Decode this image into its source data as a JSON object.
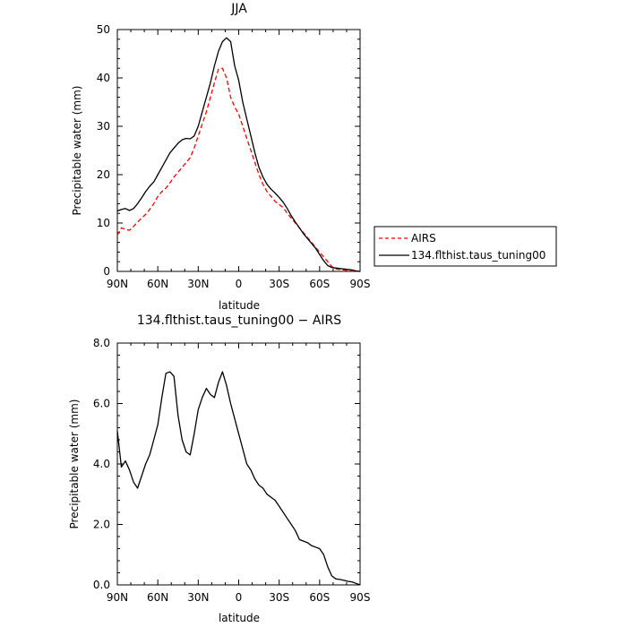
{
  "chart_data": [
    {
      "type": "line",
      "title": "JJA",
      "xlabel": "latitude",
      "ylabel": "Precipitable water (mm)",
      "xlim": [
        90,
        -90
      ],
      "ylim": [
        0,
        50
      ],
      "x_ticks": [
        90,
        60,
        30,
        0,
        -30,
        -60,
        -90
      ],
      "x_tick_labels": [
        "90N",
        "60N",
        "30N",
        "0",
        "30S",
        "60S",
        "90S"
      ],
      "y_ticks": [
        0,
        10,
        20,
        30,
        40,
        50
      ],
      "y_tick_labels": [
        "0",
        "10",
        "20",
        "30",
        "40",
        "50"
      ],
      "legend": {
        "placement": "right"
      },
      "series": [
        {
          "name": "AIRS",
          "color": "#ff0000",
          "dash": "dashed",
          "x": [
            90,
            87,
            84,
            81,
            78,
            75,
            72,
            69,
            66,
            63,
            60,
            57,
            54,
            51,
            48,
            45,
            42,
            39,
            36,
            33,
            30,
            27,
            24,
            21,
            18,
            15,
            12,
            9,
            6,
            3,
            0,
            -3,
            -6,
            -9,
            -12,
            -15,
            -18,
            -21,
            -24,
            -27,
            -30,
            -33,
            -36,
            -39,
            -42,
            -45,
            -48,
            -51,
            -54,
            -57,
            -60,
            -63,
            -66,
            -69,
            -72,
            -75,
            -78,
            -81,
            -84,
            -87,
            -90
          ],
          "y": [
            7.5,
            9.0,
            8.7,
            8.5,
            9.3,
            10.2,
            11.0,
            11.8,
            12.8,
            14.0,
            15.5,
            16.5,
            17.2,
            18.3,
            19.5,
            20.5,
            21.5,
            22.5,
            23.5,
            25.5,
            28.0,
            30.5,
            33.0,
            36.0,
            39.0,
            41.8,
            42.0,
            40.0,
            36.0,
            34.0,
            32.5,
            30.0,
            27.5,
            25.0,
            22.5,
            20.0,
            18.0,
            16.5,
            15.5,
            14.5,
            13.8,
            13.2,
            12.0,
            11.0,
            10.0,
            9.0,
            8.0,
            7.0,
            6.0,
            5.0,
            4.0,
            3.0,
            2.0,
            1.0,
            0.5,
            0.4,
            0.3,
            0.2,
            0.1,
            0.05,
            0.0
          ]
        },
        {
          "name": "134.flthist.taus_tuning00",
          "color": "#000000",
          "dash": "solid",
          "x": [
            90,
            87,
            84,
            81,
            78,
            75,
            72,
            69,
            66,
            63,
            60,
            57,
            54,
            51,
            48,
            45,
            42,
            39,
            36,
            33,
            30,
            27,
            24,
            21,
            18,
            15,
            12,
            9,
            6,
            3,
            0,
            -3,
            -6,
            -9,
            -12,
            -15,
            -18,
            -21,
            -24,
            -27,
            -30,
            -33,
            -36,
            -39,
            -42,
            -45,
            -48,
            -51,
            -54,
            -57,
            -60,
            -63,
            -66,
            -69,
            -72,
            -75,
            -78,
            -81,
            -84,
            -87,
            -90
          ],
          "y": [
            12.5,
            12.8,
            13.0,
            12.6,
            13.0,
            14.0,
            15.2,
            16.5,
            17.6,
            18.5,
            20.0,
            21.5,
            23.0,
            24.5,
            25.5,
            26.5,
            27.2,
            27.5,
            27.4,
            28.0,
            30.0,
            33.0,
            36.0,
            39.0,
            42.5,
            45.5,
            47.5,
            48.3,
            47.5,
            42.5,
            39.5,
            35.0,
            31.5,
            28.0,
            24.5,
            21.5,
            19.5,
            18.0,
            17.0,
            16.2,
            15.3,
            14.3,
            13.0,
            11.5,
            10.2,
            9.0,
            7.8,
            6.8,
            5.8,
            4.8,
            3.5,
            2.2,
            1.2,
            0.8,
            0.7,
            0.6,
            0.5,
            0.4,
            0.3,
            0.1,
            0.0
          ]
        }
      ]
    },
    {
      "type": "line",
      "title": "134.flthist.taus_tuning00 − AIRS",
      "xlabel": "latitude",
      "ylabel": "Precipitable water (mm)",
      "xlim": [
        90,
        -90
      ],
      "ylim": [
        0,
        8
      ],
      "x_ticks": [
        90,
        60,
        30,
        0,
        -30,
        -60,
        -90
      ],
      "x_tick_labels": [
        "90N",
        "60N",
        "30N",
        "0",
        "30S",
        "60S",
        "90S"
      ],
      "y_ticks": [
        0,
        2,
        4,
        6,
        8
      ],
      "y_tick_labels": [
        "0.0",
        "2.0",
        "4.0",
        "6.0",
        "8.0"
      ],
      "series": [
        {
          "color": "#000000",
          "dash": "solid",
          "x": [
            90,
            87,
            84,
            81,
            78,
            75,
            72,
            69,
            66,
            63,
            60,
            57,
            54,
            51,
            48,
            45,
            42,
            39,
            36,
            33,
            30,
            27,
            24,
            21,
            18,
            15,
            12,
            9,
            6,
            3,
            0,
            -3,
            -6,
            -9,
            -12,
            -15,
            -18,
            -21,
            -24,
            -27,
            -30,
            -33,
            -36,
            -39,
            -42,
            -45,
            -48,
            -51,
            -54,
            -57,
            -60,
            -63,
            -66,
            -69,
            -72,
            -75,
            -78,
            -81,
            -84,
            -87,
            -90
          ],
          "y": [
            5.1,
            3.9,
            4.1,
            3.8,
            3.4,
            3.2,
            3.6,
            4.0,
            4.3,
            4.8,
            5.3,
            6.2,
            7.0,
            7.05,
            6.9,
            5.6,
            4.8,
            4.4,
            4.3,
            5.0,
            5.8,
            6.2,
            6.5,
            6.3,
            6.2,
            6.7,
            7.05,
            6.6,
            6.0,
            5.5,
            5.0,
            4.5,
            4.0,
            3.8,
            3.5,
            3.3,
            3.2,
            3.0,
            2.9,
            2.8,
            2.6,
            2.4,
            2.2,
            2.0,
            1.8,
            1.5,
            1.45,
            1.4,
            1.3,
            1.25,
            1.2,
            1.0,
            0.6,
            0.3,
            0.2,
            0.18,
            0.15,
            0.12,
            0.1,
            0.05,
            0.0
          ]
        }
      ]
    }
  ]
}
